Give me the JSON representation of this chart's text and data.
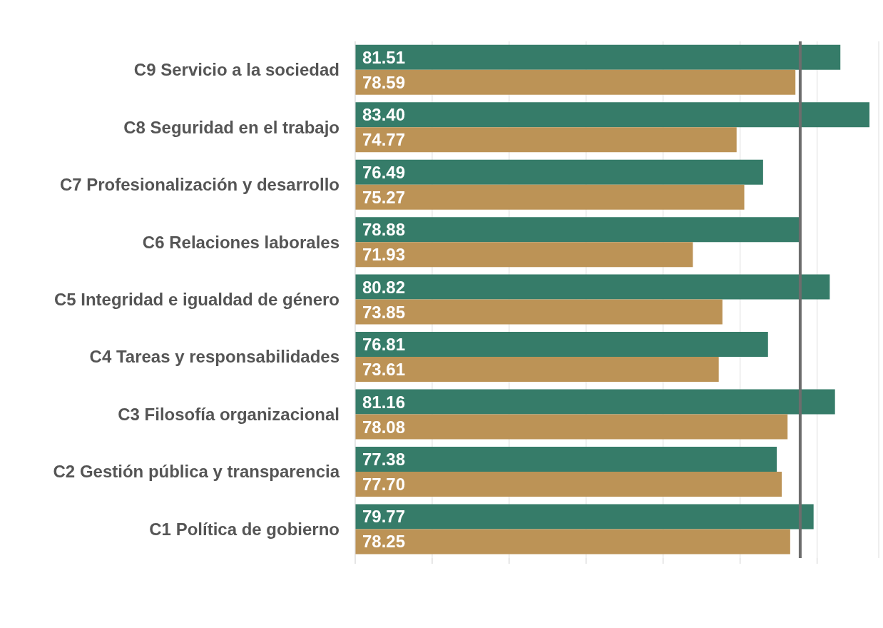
{
  "chart_data": {
    "type": "bar",
    "orientation": "horizontal",
    "categories": [
      "C9  Servicio a la sociedad",
      "C8  Seguridad en el trabajo",
      "C7 Profesionalización y desarrollo",
      "C6  Relaciones laborales",
      "C5  Integridad e igualdad de género",
      "C4  Tareas y responsabilidades",
      "C3  Filosofía organizacional",
      "C2  Gestión pública y transparencia",
      "C1  Política de gobierno"
    ],
    "series": [
      {
        "color": "#367c69",
        "values": [
          81.51,
          83.4,
          76.49,
          78.88,
          80.82,
          76.81,
          81.16,
          77.38,
          79.77
        ],
        "value_labels": [
          "81.51",
          "83.40",
          "76.49",
          "78.88",
          "80.82",
          "76.81",
          "81.16",
          "77.38",
          "79.77"
        ]
      },
      {
        "color": "#bc9356",
        "values": [
          78.59,
          74.77,
          75.27,
          71.93,
          73.85,
          73.61,
          78.08,
          77.7,
          78.25
        ],
        "value_labels": [
          "78.59",
          "74.77",
          "75.27",
          "71.93",
          "73.85",
          "73.61",
          "78.08",
          "77.70",
          "78.25"
        ]
      }
    ],
    "xlim": [
      50,
      84
    ],
    "xticks": [
      {
        "value": 50,
        "label": null
      },
      {
        "value": 55,
        "label": null
      },
      {
        "value": 60,
        "label": null
      },
      {
        "value": 65,
        "label": null
      },
      {
        "value": 70,
        "label": null
      },
      {
        "value": 75,
        "label": null
      },
      {
        "value": 80,
        "label": null
      }
    ],
    "grid": "x",
    "tick_labels": "y",
    "legend": false,
    "ref_lines": [
      {
        "axis": "x",
        "value": 78.9,
        "color": "#6d6d6d"
      }
    ]
  }
}
